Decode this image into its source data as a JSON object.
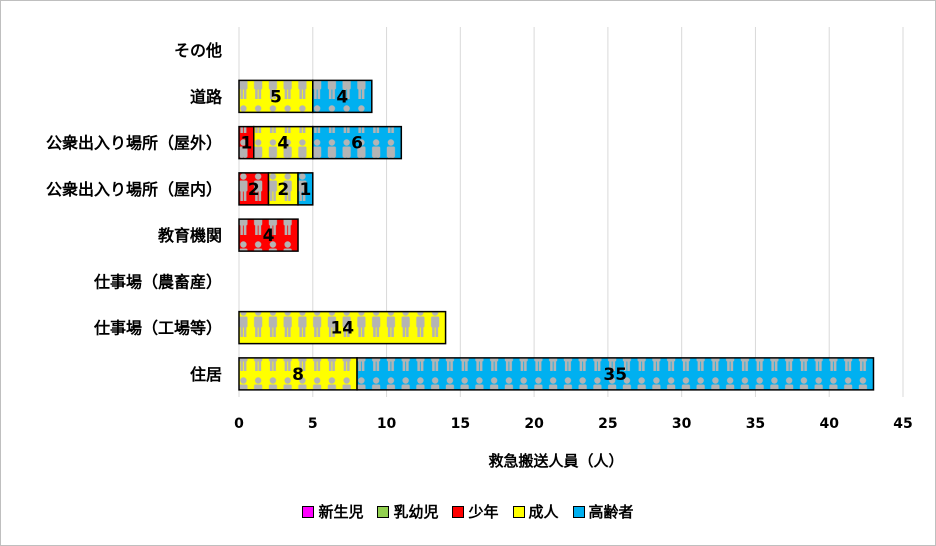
{
  "chart_data": {
    "type": "bar",
    "orientation": "horizontal",
    "stacked": true,
    "categories": [
      "その他",
      "道路",
      "公衆出入り場所（屋外）",
      "公衆出入り場所（屋内）",
      "教育機関",
      "仕事場（農畜産）",
      "仕事場（工場等）",
      "住居"
    ],
    "series": [
      {
        "name": "新生児",
        "color": "#ff00ff",
        "values": [
          0,
          0,
          0,
          0,
          0,
          0,
          0,
          0
        ]
      },
      {
        "name": "乳幼児",
        "color": "#92d050",
        "values": [
          0,
          0,
          0,
          0,
          0,
          0,
          0,
          0
        ]
      },
      {
        "name": "少年",
        "color": "#ff0000",
        "values": [
          0,
          0,
          1,
          2,
          4,
          0,
          0,
          0
        ]
      },
      {
        "name": "成人",
        "color": "#ffff00",
        "values": [
          0,
          5,
          4,
          2,
          0,
          0,
          14,
          8
        ]
      },
      {
        "name": "高齢者",
        "color": "#00b0f0",
        "values": [
          0,
          4,
          6,
          1,
          0,
          0,
          0,
          35
        ]
      }
    ],
    "xlabel": "救急搬送人員（人）",
    "xlim": [
      0,
      45
    ],
    "xticks": [
      0,
      5,
      10,
      15,
      20,
      25,
      30,
      35,
      40,
      45
    ],
    "grid": "vertical",
    "legend": "bottom",
    "bar_pattern": "person-icon"
  }
}
